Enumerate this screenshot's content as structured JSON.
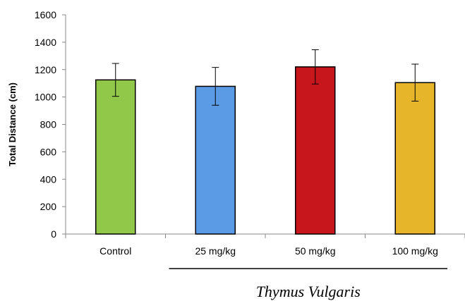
{
  "chart_data": {
    "type": "bar",
    "categories": [
      "Control",
      "25 mg/kg",
      "50 mg/kg",
      "100 mg/kg"
    ],
    "values": [
      1125,
      1078,
      1220,
      1105
    ],
    "errors": [
      120,
      138,
      125,
      135
    ],
    "colors": [
      "#92c84a",
      "#5b9be6",
      "#c8161d",
      "#e6b52a"
    ],
    "ylabel": "Total Distance (cm)",
    "ylim": [
      0,
      1600
    ],
    "yticks": [
      0,
      200,
      400,
      600,
      800,
      1000,
      1200,
      1400,
      1600
    ],
    "grid": false,
    "group_label": "Thymus Vulgaris",
    "group_categories": [
      "25 mg/kg",
      "50 mg/kg",
      "100 mg/kg"
    ]
  }
}
